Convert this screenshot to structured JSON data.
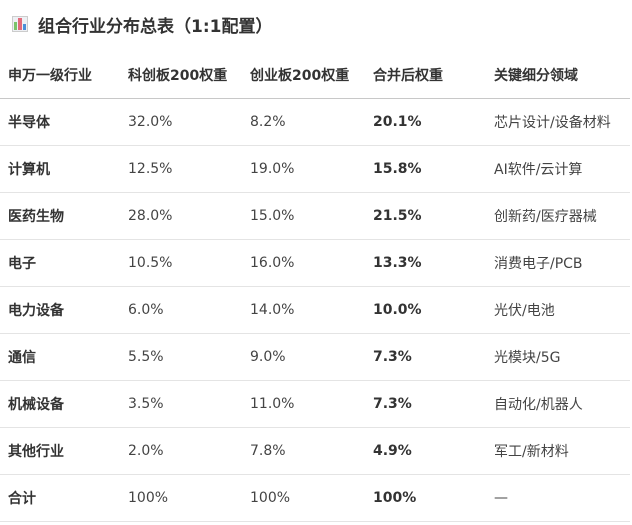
{
  "title": "组合行业分布总表（1:1配置）",
  "title_icon": "bar-chart-icon",
  "headers": [
    "申万一级行业",
    "科创板200权重",
    "创业板200权重",
    "合并后权重",
    "关键细分领域"
  ],
  "rows": [
    [
      "半导体",
      "32.0%",
      "8.2%",
      "20.1%",
      "芯片设计/设备材料"
    ],
    [
      "计算机",
      "12.5%",
      "19.0%",
      "15.8%",
      "AI软件/云计算"
    ],
    [
      "医药生物",
      "28.0%",
      "15.0%",
      "21.5%",
      "创新药/医疗器械"
    ],
    [
      "电子",
      "10.5%",
      "16.0%",
      "13.3%",
      "消费电子/PCB"
    ],
    [
      "电力设备",
      "6.0%",
      "14.0%",
      "10.0%",
      "光伏/电池"
    ],
    [
      "通信",
      "5.5%",
      "9.0%",
      "7.3%",
      "光模块/5G"
    ],
    [
      "机械设备",
      "3.5%",
      "11.0%",
      "7.3%",
      "自动化/机器人"
    ],
    [
      "其他行业",
      "2.0%",
      "7.8%",
      "4.9%",
      "军工/新材料"
    ],
    [
      "合计",
      "100%",
      "100%",
      "100%",
      "—"
    ]
  ]
}
